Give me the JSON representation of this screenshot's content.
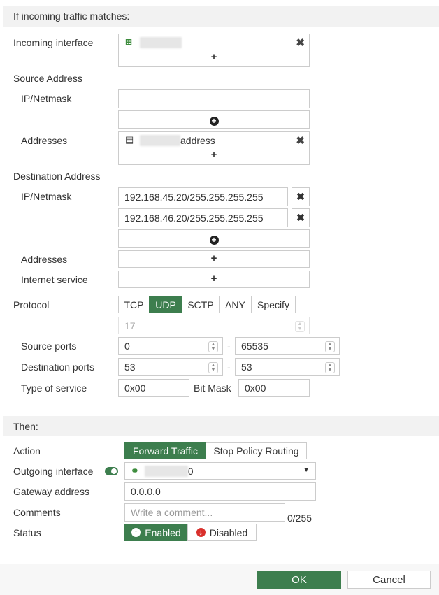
{
  "match": {
    "header": "If incoming traffic matches:",
    "incoming_interface_label": "Incoming interface",
    "source_address_label": "Source Address",
    "ip_netmask_label": "IP/Netmask",
    "addresses_label": "Addresses",
    "source_address_suffix": "address",
    "destination_address_label": "Destination Address",
    "dest_ips": [
      "192.168.45.20/255.255.255.255",
      "192.168.46.20/255.255.255.255"
    ],
    "internet_service_label": "Internet service",
    "protocol_label": "Protocol",
    "protocols": [
      "TCP",
      "UDP",
      "SCTP",
      "ANY",
      "Specify"
    ],
    "protocol_selected": "UDP",
    "protocol_number": "17",
    "source_ports_label": "Source ports",
    "source_port_from": "0",
    "source_port_to": "65535",
    "dest_ports_label": "Destination ports",
    "dest_port_from": "53",
    "dest_port_to": "53",
    "dash": "-",
    "tos_label": "Type of service",
    "tos_value": "0x00",
    "bitmask_label": "Bit Mask",
    "bitmask_value": "0x00"
  },
  "then": {
    "header": "Then:",
    "action_label": "Action",
    "actions": [
      "Forward Traffic",
      "Stop Policy Routing"
    ],
    "action_selected": "Forward Traffic",
    "outgoing_label": "Outgoing interface",
    "outgoing_enabled": true,
    "outgoing_suffix": "0",
    "gateway_label": "Gateway address",
    "gateway_value": "0.0.0.0",
    "comments_label": "Comments",
    "comments_placeholder": "Write a comment...",
    "comments_count": "0/255",
    "status_label": "Status",
    "status_enabled": "Enabled",
    "status_disabled": "Disabled",
    "status_selected": "Enabled"
  },
  "footer": {
    "ok": "OK",
    "cancel": "Cancel"
  },
  "colors": {
    "accent": "#3d7e4e",
    "disabled_red": "#d9302c"
  }
}
